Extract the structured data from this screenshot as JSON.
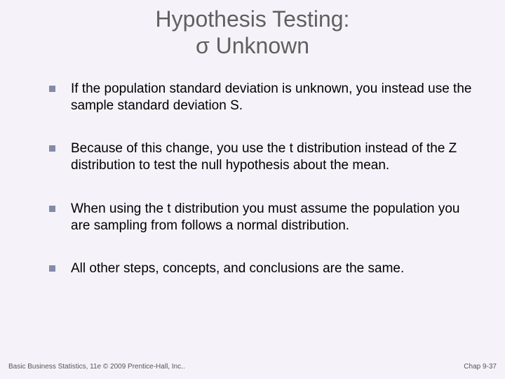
{
  "title": {
    "line1": "Hypothesis Testing:",
    "line2": "σ Unknown"
  },
  "bullets": [
    "If the population standard deviation is unknown, you instead use the sample standard deviation S.",
    "Because of this change, you use the t distribution instead of the Z distribution to test the null hypothesis about the mean.",
    "When using the t distribution you must assume the population you are sampling from follows a normal distribution.",
    "All other steps, concepts, and conclusions are the same."
  ],
  "footer": {
    "left": "Basic Business Statistics, 11e © 2009 Prentice-Hall, Inc..",
    "right": "Chap 9-37"
  },
  "colors": {
    "background": "#f5f3f9",
    "title_color": "#606060",
    "bullet_marker": "#818ca8",
    "text_color": "#000000"
  },
  "typography": {
    "title_fontsize": 32,
    "bullet_fontsize": 19,
    "footer_fontsize": 10
  }
}
